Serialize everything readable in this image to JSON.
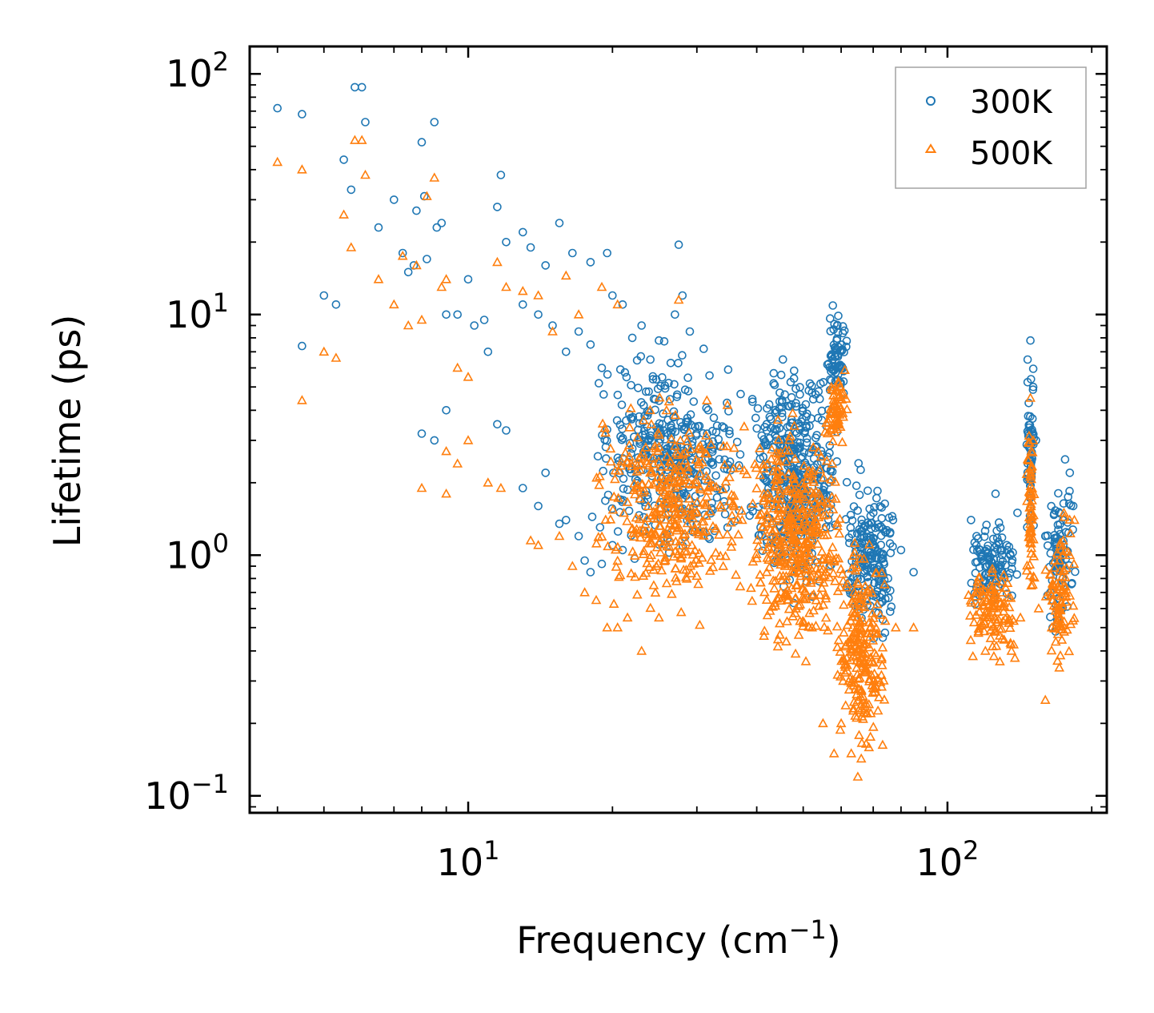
{
  "chart_data": {
    "type": "scatter",
    "xscale": "log",
    "yscale": "log",
    "xlabel": "Frequency (cm",
    "xlabel_sup": "−1",
    "xlabel_close": ")",
    "ylabel": "Lifetime (ps)",
    "xlim": [
      3.5,
      215
    ],
    "ylim": [
      0.085,
      130
    ],
    "x_ticks": [
      {
        "base": "10",
        "exp": "1",
        "value": 10
      },
      {
        "base": "10",
        "exp": "2",
        "value": 100
      }
    ],
    "y_ticks": [
      {
        "base": "10",
        "exp": "−1",
        "value": 0.1
      },
      {
        "base": "10",
        "exp": "0",
        "value": 1
      },
      {
        "base": "10",
        "exp": "1",
        "value": 10
      },
      {
        "base": "10",
        "exp": "2",
        "value": 100
      }
    ],
    "legend_position": "top-right",
    "series": [
      {
        "name": "300K",
        "marker": "circle",
        "color": "#1f77b4",
        "points": [
          [
            4.0,
            72
          ],
          [
            4.5,
            68
          ],
          [
            5.8,
            88
          ],
          [
            6.0,
            88
          ],
          [
            6.1,
            63
          ],
          [
            5.5,
            44
          ],
          [
            5.7,
            33
          ],
          [
            6.5,
            23
          ],
          [
            7.0,
            30
          ],
          [
            7.3,
            18
          ],
          [
            7.5,
            15
          ],
          [
            7.7,
            16
          ],
          [
            7.8,
            27
          ],
          [
            8.0,
            52
          ],
          [
            8.1,
            31
          ],
          [
            8.2,
            17
          ],
          [
            8.5,
            63
          ],
          [
            8.6,
            23
          ],
          [
            8.8,
            24
          ],
          [
            9.0,
            10
          ],
          [
            5.0,
            12
          ],
          [
            5.3,
            11
          ],
          [
            4.5,
            7.4
          ],
          [
            9.5,
            10
          ],
          [
            10.0,
            14
          ],
          [
            10.3,
            9
          ],
          [
            10.8,
            9.5
          ],
          [
            11.0,
            7
          ],
          [
            11.5,
            28
          ],
          [
            11.7,
            38
          ],
          [
            12.0,
            20
          ],
          [
            13.0,
            22
          ],
          [
            13.5,
            19
          ],
          [
            14.5,
            16
          ],
          [
            15.5,
            24
          ],
          [
            16.5,
            18
          ],
          [
            18.0,
            16.5
          ],
          [
            19.5,
            18
          ],
          [
            27.5,
            19.5
          ],
          [
            8.0,
            3.2
          ],
          [
            8.5,
            3.0
          ],
          [
            9.0,
            4.0
          ],
          [
            11.5,
            3.5
          ],
          [
            12.0,
            3.3
          ],
          [
            13.0,
            1.9
          ],
          [
            14.0,
            1.6
          ],
          [
            14.5,
            2.2
          ],
          [
            15.5,
            1.35
          ],
          [
            16.0,
            1.4
          ],
          [
            17.0,
            1.2
          ],
          [
            17.5,
            0.95
          ],
          [
            18.0,
            0.85
          ],
          [
            19.0,
            0.92
          ],
          [
            20.0,
            1.1
          ],
          [
            21.0,
            1.05
          ],
          [
            13.0,
            11
          ],
          [
            14.0,
            10
          ],
          [
            15.0,
            9
          ],
          [
            16.0,
            7
          ],
          [
            17.0,
            8.5
          ],
          [
            18.0,
            7.5
          ],
          [
            19.0,
            6
          ],
          [
            20.0,
            12
          ],
          [
            21.0,
            11
          ],
          [
            22.0,
            8
          ],
          [
            23.0,
            9
          ],
          [
            24.0,
            6.5
          ],
          [
            25.0,
            7.8
          ],
          [
            27.0,
            10
          ],
          [
            28.0,
            12
          ],
          [
            29.0,
            8.5
          ],
          [
            31.0,
            7.2
          ],
          [
            112,
            1.4
          ],
          [
            115,
            1.2
          ],
          [
            118,
            1.0
          ],
          [
            121,
            0.9
          ],
          [
            126,
            1.8
          ],
          [
            129,
            1.3
          ],
          [
            133,
            1.1
          ],
          [
            140,
            1.5
          ],
          [
            147,
            6.5
          ],
          [
            149,
            7.8
          ],
          [
            151,
            5.0
          ],
          [
            153,
            3.0
          ],
          [
            160,
            1.2
          ],
          [
            164,
            0.7
          ],
          [
            170,
            0.9
          ],
          [
            176,
            2.5
          ],
          [
            180,
            2.2
          ],
          [
            183,
            1.6
          ],
          [
            85,
            0.85
          ],
          [
            80,
            1.05
          ]
        ],
        "clusters": [
          {
            "x": [
              18,
              38
            ],
            "y": [
              0.8,
              8.5
            ],
            "n": 380
          },
          {
            "x": [
              38,
              60
            ],
            "y": [
              0.55,
              8.0
            ],
            "n": 420
          },
          {
            "x": [
              56,
              62
            ],
            "y": [
              4.0,
              11.5
            ],
            "n": 70
          },
          {
            "x": [
              60,
              78
            ],
            "y": [
              0.35,
              3.0
            ],
            "n": 200
          },
          {
            "x": [
              110,
              140
            ],
            "y": [
              0.55,
              1.5
            ],
            "n": 110
          },
          {
            "x": [
              146,
              152
            ],
            "y": [
              1.0,
              7.5
            ],
            "n": 60
          },
          {
            "x": [
              160,
              185
            ],
            "y": [
              0.4,
              2.6
            ],
            "n": 90
          }
        ]
      },
      {
        "name": "500K",
        "marker": "triangle",
        "color": "#ff7f0e",
        "points": [
          [
            4.0,
            43
          ],
          [
            4.5,
            40
          ],
          [
            5.8,
            53
          ],
          [
            6.0,
            53
          ],
          [
            6.1,
            38
          ],
          [
            5.5,
            26
          ],
          [
            5.7,
            19
          ],
          [
            6.5,
            14
          ],
          [
            7.0,
            11
          ],
          [
            7.3,
            17.5
          ],
          [
            7.5,
            9
          ],
          [
            7.8,
            16
          ],
          [
            8.0,
            9.5
          ],
          [
            8.2,
            31
          ],
          [
            8.5,
            37
          ],
          [
            8.8,
            13
          ],
          [
            9.0,
            14
          ],
          [
            9.5,
            6.0
          ],
          [
            10.0,
            5.5
          ],
          [
            11.5,
            16.5
          ],
          [
            5.0,
            7.0
          ],
          [
            5.3,
            6.6
          ],
          [
            4.5,
            4.4
          ],
          [
            8.0,
            1.9
          ],
          [
            9.0,
            1.8
          ],
          [
            9.0,
            2.7
          ],
          [
            9.5,
            2.4
          ],
          [
            10.0,
            3.0
          ],
          [
            11.0,
            2.0
          ],
          [
            11.7,
            1.9
          ],
          [
            12.0,
            13
          ],
          [
            13.0,
            12.5
          ],
          [
            14.0,
            12
          ],
          [
            15.0,
            8.5
          ],
          [
            16.0,
            14.5
          ],
          [
            17.0,
            10
          ],
          [
            19.0,
            13
          ],
          [
            20.5,
            11
          ],
          [
            27.5,
            11.5
          ],
          [
            13.5,
            1.15
          ],
          [
            14.0,
            1.1
          ],
          [
            15.5,
            1.2
          ],
          [
            16.5,
            0.9
          ],
          [
            17.5,
            0.7
          ],
          [
            18.5,
            0.65
          ],
          [
            19.5,
            0.5
          ],
          [
            20.5,
            0.5
          ],
          [
            21.5,
            0.55
          ],
          [
            23.0,
            0.4
          ],
          [
            25.0,
            0.55
          ],
          [
            113,
            0.38
          ],
          [
            115,
            0.7
          ],
          [
            120,
            0.4
          ],
          [
            125,
            0.38
          ],
          [
            130,
            0.45
          ],
          [
            136,
            0.4
          ],
          [
            142,
            0.55
          ],
          [
            147,
            2.5
          ],
          [
            149,
            4.5
          ],
          [
            151,
            3.0
          ],
          [
            155,
            0.6
          ],
          [
            160,
            0.25
          ],
          [
            165,
            0.5
          ],
          [
            175,
            1.5
          ],
          [
            180,
            1.0
          ],
          [
            184,
            1.4
          ],
          [
            60,
            0.2
          ],
          [
            63,
            0.15
          ],
          [
            65,
            0.12
          ],
          [
            68,
            0.22
          ],
          [
            70,
            0.28
          ],
          [
            78,
            0.5
          ],
          [
            85,
            0.5
          ],
          [
            55,
            0.2
          ],
          [
            58,
            0.15
          ]
        ],
        "clusters": [
          {
            "x": [
              18,
              40
            ],
            "y": [
              0.45,
              5.5
            ],
            "n": 380
          },
          {
            "x": [
              38,
              62
            ],
            "y": [
              0.3,
              4.5
            ],
            "n": 420
          },
          {
            "x": [
              56,
              62
            ],
            "y": [
              2.5,
              6.5
            ],
            "n": 60
          },
          {
            "x": [
              58,
              75
            ],
            "y": [
              0.12,
              1.5
            ],
            "n": 230
          },
          {
            "x": [
              110,
              140
            ],
            "y": [
              0.35,
              1.0
            ],
            "n": 110
          },
          {
            "x": [
              146,
              152
            ],
            "y": [
              0.5,
              4.5
            ],
            "n": 60
          },
          {
            "x": [
              160,
              185
            ],
            "y": [
              0.28,
              1.6
            ],
            "n": 90
          }
        ]
      }
    ]
  }
}
